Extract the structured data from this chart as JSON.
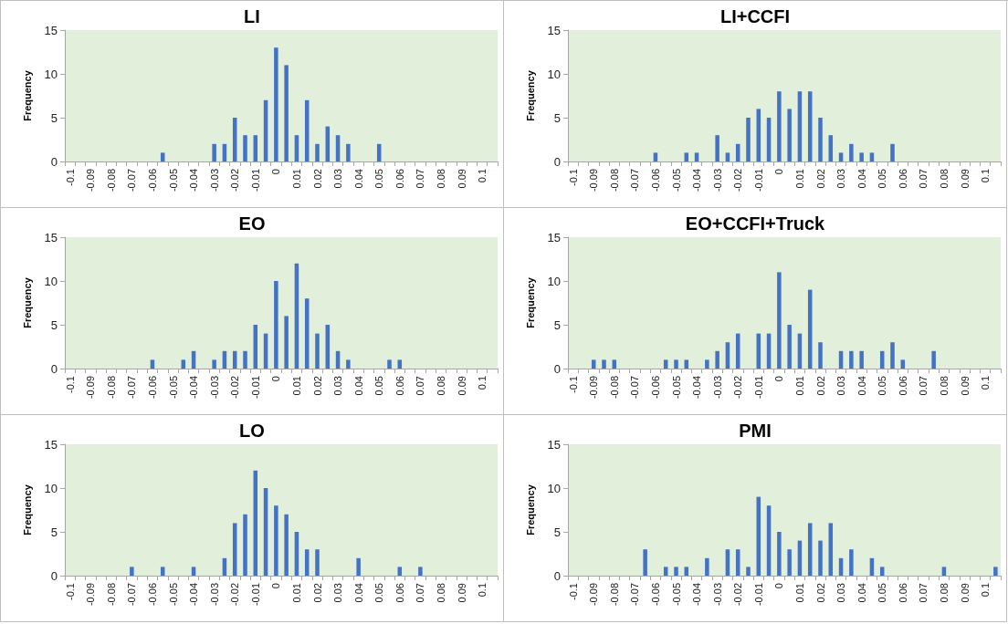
{
  "chart_data": [
    {
      "type": "bar",
      "title": "LI",
      "ylabel": "Frequency",
      "color": "#4472c4",
      "ylim": [
        0,
        15
      ],
      "yticks": [
        0,
        5,
        10,
        15
      ],
      "categories": [
        "-0.1",
        null,
        "-0.09",
        null,
        "-0.08",
        null,
        "-0.07",
        null,
        "-0.06",
        null,
        "-0.05",
        null,
        "-0.04",
        null,
        "-0.03",
        null,
        "-0.02",
        null,
        "-0.01",
        null,
        "0",
        null,
        "0.01",
        null,
        "0.02",
        null,
        "0.03",
        null,
        "0.04",
        null,
        "0.05",
        null,
        "0.06",
        null,
        "0.07",
        null,
        "0.08",
        null,
        "0.09",
        null,
        "0.1",
        null
      ],
      "values": [
        0,
        0,
        0,
        0,
        0,
        0,
        0,
        0,
        0,
        1,
        0,
        0,
        0,
        0,
        2,
        2,
        5,
        3,
        3,
        7,
        13,
        11,
        3,
        7,
        2,
        4,
        3,
        2,
        0,
        0,
        2,
        0,
        0,
        0,
        0,
        0,
        0,
        0,
        0,
        0,
        0,
        0
      ]
    },
    {
      "type": "bar",
      "title": "LI+CCFI",
      "ylabel": "Frequency",
      "color": "#4472c4",
      "ylim": [
        0,
        15
      ],
      "yticks": [
        0,
        5,
        10,
        15
      ],
      "categories": [
        "-0.1",
        null,
        "-0.09",
        null,
        "-0.08",
        null,
        "-0.07",
        null,
        "-0.06",
        null,
        "-0.05",
        null,
        "-0.04",
        null,
        "-0.03",
        null,
        "-0.02",
        null,
        "-0.01",
        null,
        "0",
        null,
        "0.01",
        null,
        "0.02",
        null,
        "0.03",
        null,
        "0.04",
        null,
        "0.05",
        null,
        "0.06",
        null,
        "0.07",
        null,
        "0.08",
        null,
        "0.09",
        null,
        "0.1",
        null
      ],
      "values": [
        0,
        0,
        0,
        0,
        0,
        0,
        0,
        0,
        1,
        0,
        0,
        1,
        1,
        0,
        3,
        1,
        2,
        5,
        6,
        5,
        8,
        6,
        8,
        8,
        5,
        3,
        1,
        2,
        1,
        1,
        0,
        2,
        0,
        0,
        0,
        0,
        0,
        0,
        0,
        0,
        0,
        0
      ]
    },
    {
      "type": "bar",
      "title": "EO",
      "ylabel": "Frequency",
      "color": "#4472c4",
      "ylim": [
        0,
        15
      ],
      "yticks": [
        0,
        5,
        10,
        15
      ],
      "categories": [
        "-0.1",
        null,
        "-0.09",
        null,
        "-0.08",
        null,
        "-0.07",
        null,
        "-0.06",
        null,
        "-0.05",
        null,
        "-0.04",
        null,
        "-0.03",
        null,
        "-0.02",
        null,
        "-0.01",
        null,
        "0",
        null,
        "0.01",
        null,
        "0.02",
        null,
        "0.03",
        null,
        "0.04",
        null,
        "0.05",
        null,
        "0.06",
        null,
        "0.07",
        null,
        "0.08",
        null,
        "0.09",
        null,
        "0.1",
        null
      ],
      "values": [
        0,
        0,
        0,
        0,
        0,
        0,
        0,
        0,
        1,
        0,
        0,
        1,
        2,
        0,
        1,
        2,
        2,
        2,
        5,
        4,
        10,
        6,
        12,
        8,
        4,
        5,
        2,
        1,
        0,
        0,
        0,
        1,
        1,
        0,
        0,
        0,
        0,
        0,
        0,
        0,
        0,
        0
      ]
    },
    {
      "type": "bar",
      "title": "EO+CCFI+Truck",
      "ylabel": "Frequency",
      "color": "#4472c4",
      "ylim": [
        0,
        15
      ],
      "yticks": [
        0,
        5,
        10,
        15
      ],
      "categories": [
        "-0.1",
        null,
        "-0.09",
        null,
        "-0.08",
        null,
        "-0.07",
        null,
        "-0.06",
        null,
        "-0.05",
        null,
        "-0.04",
        null,
        "-0.03",
        null,
        "-0.02",
        null,
        "-0.01",
        null,
        "0",
        null,
        "0.01",
        null,
        "0.02",
        null,
        "0.03",
        null,
        "0.04",
        null,
        "0.05",
        null,
        "0.06",
        null,
        "0.07",
        null,
        "0.08",
        null,
        "0.09",
        null,
        "0.1",
        null
      ],
      "values": [
        0,
        0,
        1,
        1,
        1,
        0,
        0,
        0,
        0,
        1,
        1,
        1,
        0,
        1,
        2,
        3,
        4,
        0,
        4,
        4,
        11,
        5,
        4,
        9,
        3,
        0,
        2,
        2,
        2,
        0,
        2,
        3,
        1,
        0,
        0,
        2,
        0,
        0,
        0,
        0,
        0,
        0
      ]
    },
    {
      "type": "bar",
      "title": "LO",
      "ylabel": "Frequency",
      "color": "#4472c4",
      "ylim": [
        0,
        15
      ],
      "yticks": [
        0,
        5,
        10,
        15
      ],
      "categories": [
        "-0.1",
        null,
        "-0.09",
        null,
        "-0.08",
        null,
        "-0.07",
        null,
        "-0.06",
        null,
        "-0.05",
        null,
        "-0.04",
        null,
        "-0.03",
        null,
        "-0.02",
        null,
        "-0.01",
        null,
        "0",
        null,
        "0.01",
        null,
        "0.02",
        null,
        "0.03",
        null,
        "0.04",
        null,
        "0.05",
        null,
        "0.06",
        null,
        "0.07",
        null,
        "0.08",
        null,
        "0.09",
        null,
        "0.1",
        null
      ],
      "values": [
        0,
        0,
        0,
        0,
        0,
        0,
        1,
        0,
        0,
        1,
        0,
        0,
        1,
        0,
        0,
        2,
        6,
        7,
        12,
        10,
        8,
        7,
        5,
        3,
        3,
        0,
        0,
        0,
        2,
        0,
        0,
        0,
        1,
        0,
        1,
        0,
        0,
        0,
        0,
        0,
        0,
        0
      ]
    },
    {
      "type": "bar",
      "title": "PMI",
      "ylabel": "Frequency",
      "color": "#4472c4",
      "ylim": [
        0,
        15
      ],
      "yticks": [
        0,
        5,
        10,
        15
      ],
      "categories": [
        "-0.1",
        null,
        "-0.09",
        null,
        "-0.08",
        null,
        "-0.07",
        null,
        "-0.06",
        null,
        "-0.05",
        null,
        "-0.04",
        null,
        "-0.03",
        null,
        "-0.02",
        null,
        "-0.01",
        null,
        "0",
        null,
        "0.01",
        null,
        "0.02",
        null,
        "0.03",
        null,
        "0.04",
        null,
        "0.05",
        null,
        "0.06",
        null,
        "0.07",
        null,
        "0.08",
        null,
        "0.09",
        null,
        "0.1",
        null
      ],
      "values": [
        0,
        0,
        0,
        0,
        0,
        0,
        0,
        3,
        0,
        1,
        1,
        1,
        0,
        2,
        0,
        3,
        3,
        1,
        9,
        8,
        5,
        3,
        4,
        6,
        4,
        6,
        2,
        3,
        0,
        2,
        1,
        0,
        0,
        0,
        0,
        0,
        1,
        0,
        0,
        0,
        0,
        1
      ]
    }
  ]
}
